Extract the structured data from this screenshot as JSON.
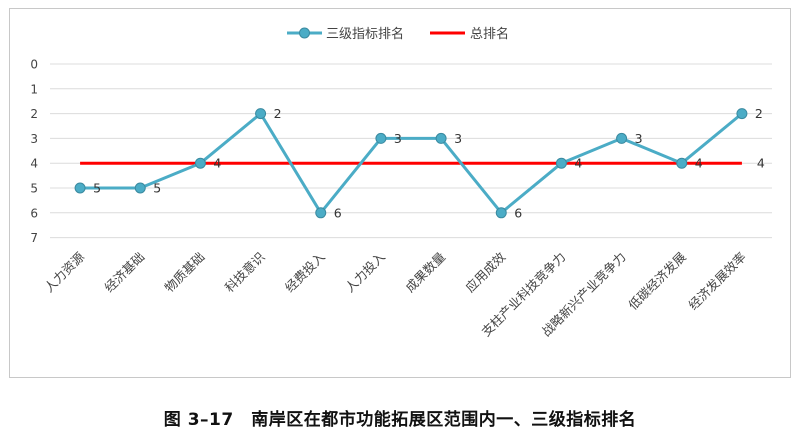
{
  "caption": "图 3–17　南岸区在都市功能拓展区范围内一、三级指标排名",
  "chart_data": {
    "type": "line",
    "categories": [
      "人力资源",
      "经济基础",
      "物质基础",
      "科技意识",
      "经费投入",
      "人力投入",
      "成果数量",
      "应用成效",
      "支柱产业科技竞争力",
      "战略新兴产业竞争力",
      "低碳经济发展",
      "经济发展效率"
    ],
    "series": [
      {
        "name": "三级指标排名",
        "values": [
          5,
          5,
          4,
          2,
          6,
          3,
          3,
          6,
          4,
          3,
          4,
          2
        ],
        "color": "#4bacc6",
        "marker": "circle",
        "data_labels": true
      },
      {
        "name": "总排名",
        "values": [
          4,
          4,
          4,
          4,
          4,
          4,
          4,
          4,
          4,
          4,
          4,
          4
        ],
        "color": "#ff0000",
        "data_labels": "last-only"
      }
    ],
    "y_ticks": [
      "0",
      "1",
      "2",
      "3",
      "4",
      "5",
      "6",
      "7"
    ],
    "ylim": [
      0,
      7
    ],
    "y_inverted": true,
    "grid": true,
    "legend": "top-center",
    "title": "",
    "xlabel": "",
    "ylabel": ""
  }
}
